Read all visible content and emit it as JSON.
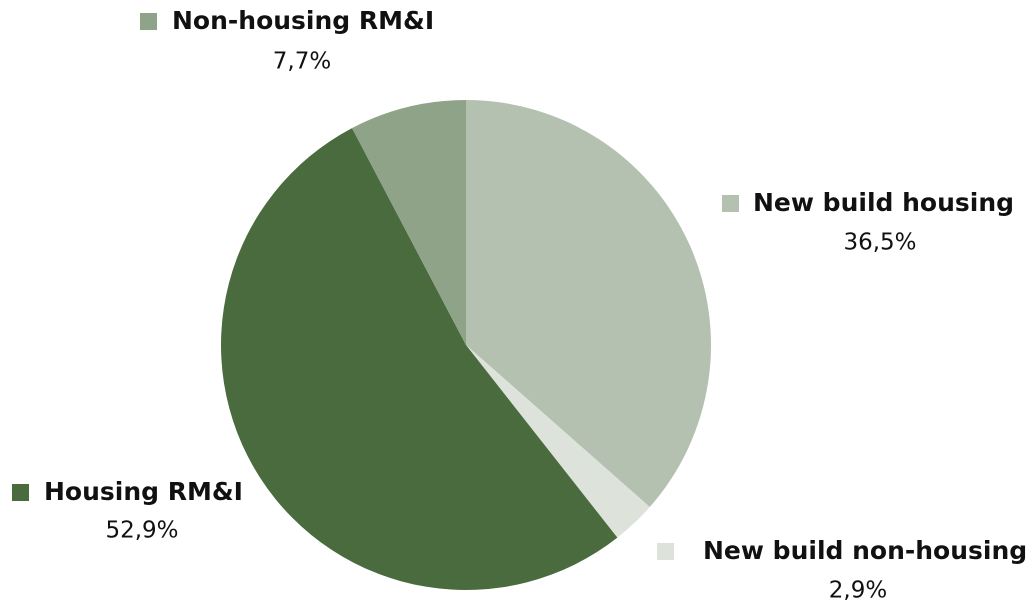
{
  "chart_data": {
    "type": "pie",
    "categories": [
      "New build housing",
      "New build non-housing",
      "Housing RM&I",
      "Non-housing RM&I"
    ],
    "values": [
      36.5,
      2.9,
      52.9,
      7.7
    ],
    "value_labels": [
      "36,5%",
      "2,9%",
      "52,9%",
      "7,7%"
    ],
    "colors": [
      "#b5c1b0",
      "#dde2da",
      "#4a6b3e",
      "#8fa389"
    ]
  }
}
